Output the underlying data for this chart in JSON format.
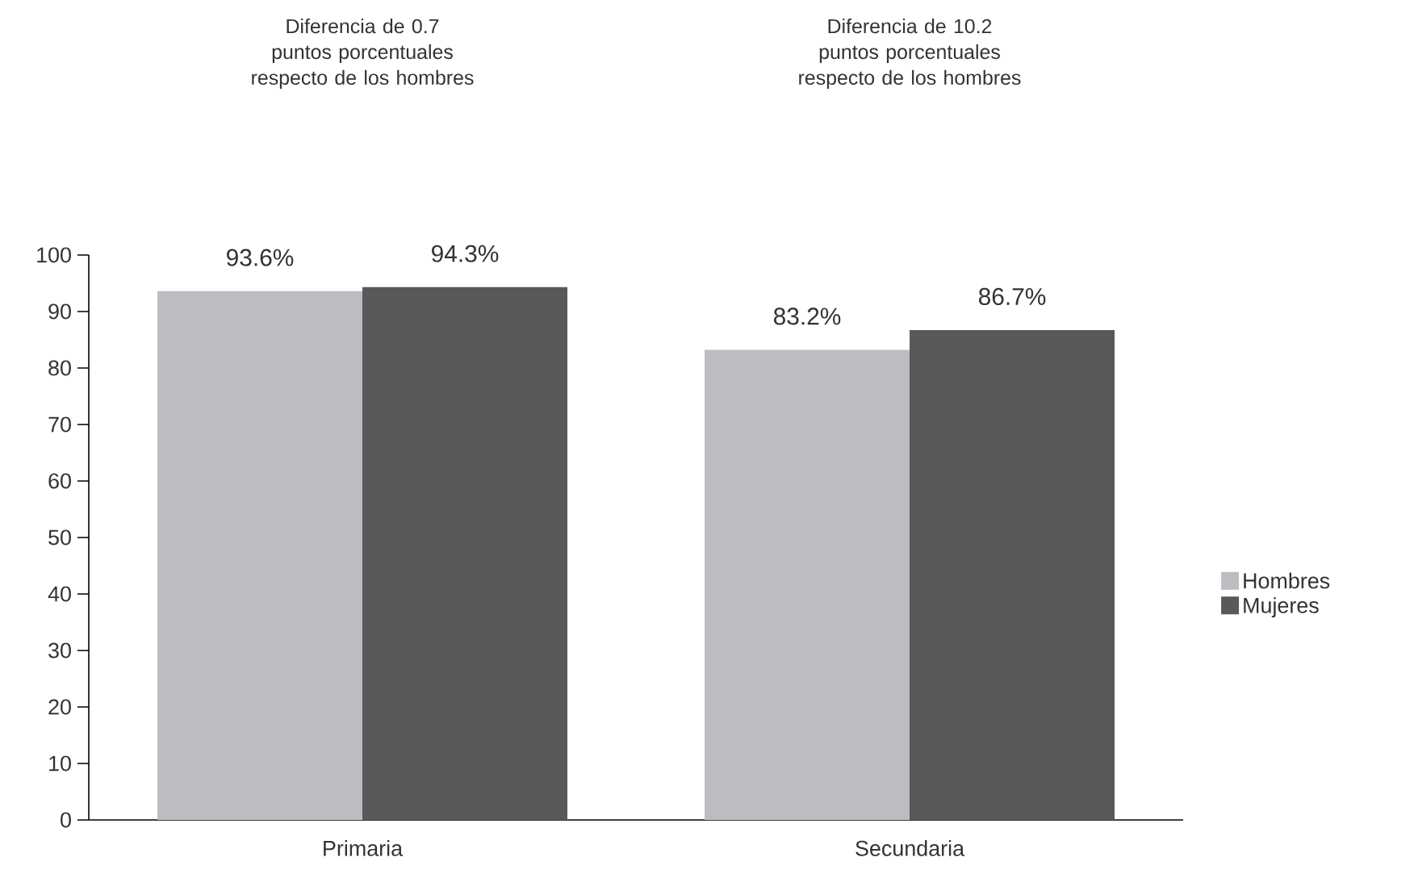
{
  "chart_data": {
    "type": "bar",
    "categories": [
      "Primaria",
      "Secundaria"
    ],
    "series": [
      {
        "name": "Hombres",
        "color": "#bcbdc0",
        "values": [
          93.6,
          83.2
        ],
        "value_labels": [
          "93.6%",
          "83.2%"
        ]
      },
      {
        "name": "Mujeres",
        "color": "#58595b",
        "values": [
          94.3,
          86.7
        ],
        "value_labels": [
          "94.3%",
          "86.7%"
        ]
      }
    ],
    "annotations": [
      "Diferencia de 0.7 puntos porcentuales respecto de los hombres",
      "Diferencia de 10.2 puntos porcentuales respecto de los hombres"
    ],
    "ylim": [
      0,
      100
    ],
    "yticks": [
      0,
      10,
      20,
      30,
      40,
      50,
      60,
      70,
      80,
      90,
      100
    ],
    "legend": "right"
  }
}
